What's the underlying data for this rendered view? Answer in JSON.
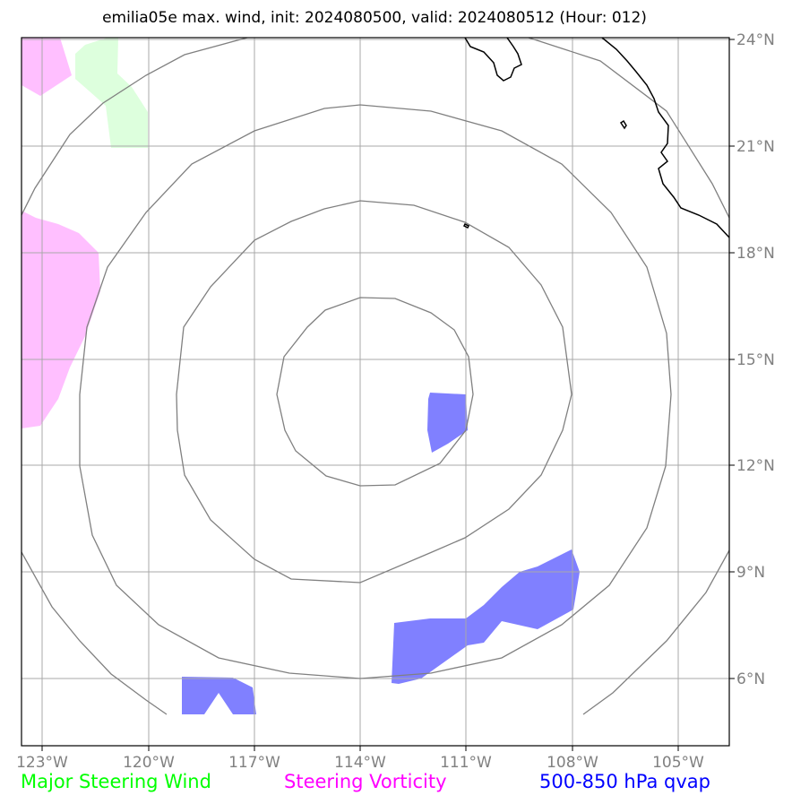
{
  "title": "emilia05e max. wind, init: 2024080500, valid: 2024080512 (Hour: 012)",
  "colors": {
    "steering_wind": "#00ff00",
    "steering_vorticity": "#ff00ff",
    "qvap": "#0000ff",
    "wind_fill": "#ddffdd",
    "vort_fill": "#ffbfff",
    "qvap_fill": "#8080ff",
    "grid": "#a9a9a9",
    "range_rings": "#808080",
    "coastline": "#000000"
  },
  "legend": {
    "wind": "Major Steering Wind",
    "vorticity": "Steering Vorticity",
    "qvap": "500-850 hPa qvap"
  },
  "axes": {
    "lat_labels": [
      "24°N",
      "21°N",
      "18°N",
      "15°N",
      "12°N",
      "9°N",
      "6°N"
    ],
    "lon_labels": [
      "123°W",
      "120°W",
      "117°W",
      "114°W",
      "111°W",
      "108°W",
      "105°W"
    ]
  }
}
